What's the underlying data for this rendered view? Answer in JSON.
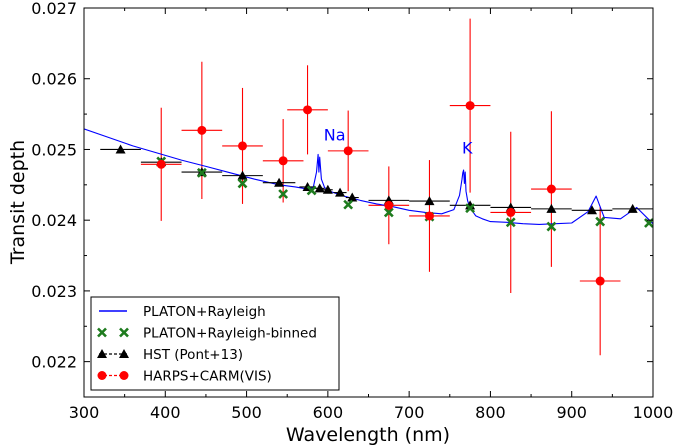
{
  "chart_data": {
    "type": "scatter",
    "xlabel": "Wavelength (nm)",
    "ylabel": "Transit depth",
    "xlim": [
      300,
      1000
    ],
    "ylim": [
      0.0215,
      0.027
    ],
    "x_ticks": [
      300,
      400,
      500,
      600,
      700,
      800,
      900,
      1000
    ],
    "x_tick_labels": [
      "300",
      "400",
      "500",
      "600",
      "700",
      "800",
      "900",
      "1000"
    ],
    "y_ticks": [
      0.022,
      0.023,
      0.024,
      0.025,
      0.026,
      0.027
    ],
    "y_tick_labels": [
      "0.022",
      "0.023",
      "0.024",
      "0.025",
      "0.026",
      "0.027"
    ],
    "grid": false,
    "legend_position": "bottom-left",
    "annotations": [
      {
        "text": "Na",
        "x": 595,
        "y": 0.02513,
        "color": "#0000ff"
      },
      {
        "text": "K",
        "x": 765,
        "y": 0.02494,
        "color": "#0000ff"
      }
    ],
    "series": [
      {
        "name": "PLATON+Rayleigh",
        "kind": "line",
        "color": "#0000ff",
        "x": [
          300,
          330,
          360,
          390,
          420,
          450,
          480,
          510,
          540,
          560,
          575,
          582,
          586,
          588,
          589,
          590,
          592,
          596,
          602,
          620,
          640,
          660,
          680,
          700,
          720,
          740,
          755,
          762,
          765,
          766,
          767,
          768,
          769,
          770,
          772,
          776,
          782,
          790,
          800,
          820,
          840,
          860,
          880,
          900,
          920,
          930,
          940,
          960,
          980,
          1000
        ],
        "y": [
          0.02529,
          0.02517,
          0.02505,
          0.02495,
          0.02485,
          0.02476,
          0.02467,
          0.02458,
          0.0245,
          0.02447,
          0.02444,
          0.02446,
          0.02468,
          0.02493,
          0.02468,
          0.02489,
          0.02458,
          0.02446,
          0.02441,
          0.02434,
          0.02428,
          0.02423,
          0.02419,
          0.02414,
          0.02411,
          0.02409,
          0.02415,
          0.02435,
          0.02458,
          0.02467,
          0.02471,
          0.02452,
          0.02468,
          0.02441,
          0.02427,
          0.02416,
          0.02406,
          0.02402,
          0.02398,
          0.02397,
          0.02395,
          0.02394,
          0.02395,
          0.02396,
          0.02412,
          0.02434,
          0.02404,
          0.02402,
          0.02418,
          0.02395
        ]
      },
      {
        "name": "PLATON+Rayleigh-binned",
        "kind": "marker",
        "color": "#1e7b1e",
        "x": [
          395,
          445,
          495,
          545,
          580,
          625,
          675,
          725,
          775,
          825,
          875,
          935,
          995
        ],
        "y": [
          0.02483,
          0.02467,
          0.02452,
          0.02437,
          0.02442,
          0.02422,
          0.02411,
          0.02405,
          0.02417,
          0.02397,
          0.02391,
          0.02398,
          0.02396
        ]
      },
      {
        "name": "HST (Pont+13)",
        "kind": "errorbar",
        "color": "#000000",
        "x": [
          345,
          395,
          445,
          495,
          540,
          575,
          590,
          600,
          615,
          630,
          675,
          725,
          775,
          825,
          875,
          925,
          975
        ],
        "y": [
          0.025,
          0.02482,
          0.02468,
          0.02463,
          0.02453,
          0.02447,
          0.02445,
          0.02443,
          0.02439,
          0.02432,
          0.02428,
          0.02427,
          0.02421,
          0.02418,
          0.02416,
          0.02414,
          0.02416
        ],
        "xerr": [
          25,
          25,
          25,
          25,
          20,
          10,
          6,
          6,
          8,
          8,
          25,
          25,
          25,
          25,
          25,
          25,
          25
        ],
        "yerr": [
          0,
          0,
          0,
          0,
          0,
          0,
          0,
          0,
          0,
          0,
          0,
          0,
          0,
          0,
          0,
          0,
          0
        ]
      },
      {
        "name": "HARPS+CARM(VIS)",
        "kind": "errorbar",
        "color": "#ff0000",
        "x": [
          395,
          445,
          495,
          545,
          575,
          625,
          675,
          725,
          775,
          825,
          875,
          935
        ],
        "y": [
          0.02479,
          0.02527,
          0.02505,
          0.02484,
          0.02556,
          0.02498,
          0.02421,
          0.02406,
          0.02562,
          0.02411,
          0.02444,
          0.02314
        ],
        "xerr": [
          25,
          25,
          25,
          25,
          25,
          25,
          25,
          25,
          25,
          25,
          25,
          25
        ],
        "yerr": [
          0.0008,
          0.00097,
          0.00082,
          0.00059,
          0.00063,
          0.00057,
          0.00055,
          0.00079,
          0.00123,
          0.00114,
          0.0011,
          0.00105
        ]
      }
    ]
  }
}
